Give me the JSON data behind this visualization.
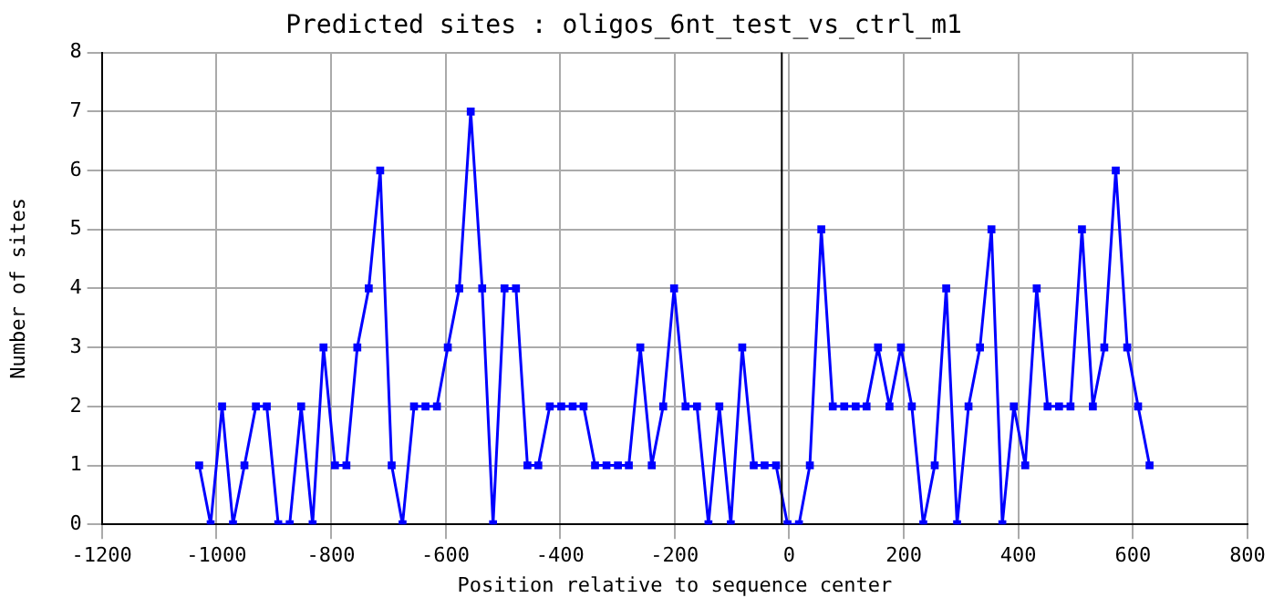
{
  "chart_data": {
    "type": "line",
    "title": "Predicted sites : oligos_6nt_test_vs_ctrl_m1",
    "xlabel": "Position relative to sequence center",
    "ylabel": "Number of sites",
    "x": [
      -1030,
      -1010,
      -990,
      -971,
      -951,
      -931,
      -912,
      -892,
      -872,
      -852,
      -832,
      -813,
      -793,
      -773,
      -754,
      -734,
      -714,
      -694,
      -675,
      -655,
      -635,
      -615,
      -596,
      -576,
      -556,
      -536,
      -517,
      -497,
      -477,
      -457,
      -438,
      -418,
      -398,
      -378,
      -359,
      -339,
      -319,
      -299,
      -280,
      -260,
      -240,
      -220,
      -201,
      -181,
      -161,
      -141,
      -122,
      -102,
      -82,
      -62,
      -43,
      -23,
      -3,
      17,
      36,
      56,
      76,
      96,
      116,
      135,
      155,
      175,
      195,
      214,
      234,
      254,
      274,
      293,
      313,
      333,
      353,
      372,
      392,
      412,
      432,
      451,
      471,
      491,
      511,
      530,
      550,
      570,
      590,
      609,
      629
    ],
    "series": [
      {
        "color": "#0000ff",
        "values": [
          1,
          0,
          2,
          0,
          1,
          2,
          2,
          0,
          0,
          2,
          0,
          3,
          1,
          1,
          3,
          4,
          6,
          1,
          0,
          2,
          2,
          2,
          3,
          4,
          7,
          4,
          0,
          4,
          4,
          1,
          1,
          2,
          2,
          2,
          2,
          1,
          1,
          1,
          1,
          3,
          1,
          2,
          4,
          2,
          2,
          0,
          2,
          0,
          3,
          1,
          1,
          1,
          0,
          0,
          1,
          5,
          2,
          2,
          2,
          2,
          3,
          2,
          3,
          2,
          0,
          1,
          4,
          0,
          2,
          3,
          5,
          0,
          2,
          1,
          4,
          2,
          2,
          2,
          5,
          2,
          3,
          6,
          3,
          2,
          1
        ]
      }
    ],
    "xlim": [
      -1200,
      800
    ],
    "xticks": [
      -1200,
      -1000,
      -800,
      -600,
      -400,
      -200,
      0,
      200,
      400,
      600,
      800
    ],
    "ylim": [
      0,
      8
    ],
    "yticks": [
      0,
      1,
      2,
      3,
      4,
      5,
      6,
      7,
      8
    ],
    "ref_lines": [
      {
        "axis": "x",
        "value": -13,
        "color": "#000000"
      }
    ],
    "grid": true,
    "legend": false,
    "marker": "square",
    "line_style": "solid"
  }
}
